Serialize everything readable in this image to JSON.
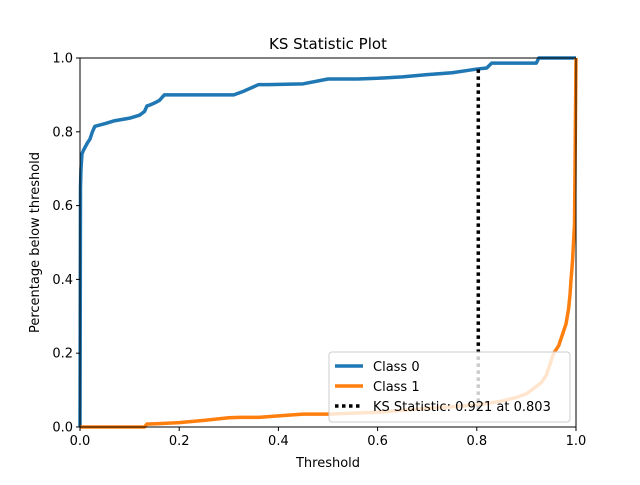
{
  "chart_data": {
    "type": "line",
    "title": "KS Statistic Plot",
    "xlabel": "Threshold",
    "ylabel": "Percentage below threshold",
    "xlim": [
      0,
      1
    ],
    "ylim": [
      0,
      1
    ],
    "xticks": [
      0,
      0.2,
      0.4,
      0.6,
      0.8,
      1
    ],
    "xtick_labels": [
      "0.0",
      "0.2",
      "0.4",
      "0.6",
      "0.8",
      "1.0"
    ],
    "yticks": [
      0,
      0.2,
      0.4,
      0.6,
      0.8,
      1
    ],
    "ytick_labels": [
      "0.0",
      "0.2",
      "0.4",
      "0.6",
      "0.8",
      "1.0"
    ],
    "grid": false,
    "legend_position": "lower-right",
    "series": [
      {
        "name": "Class 0",
        "label": "Class 0",
        "color": "#1f77b4",
        "style": "solid",
        "x": [
          0.0,
          0.001,
          0.002,
          0.004,
          0.007,
          0.015,
          0.02,
          0.025,
          0.03,
          0.05,
          0.07,
          0.1,
          0.12,
          0.13,
          0.135,
          0.14,
          0.15,
          0.16,
          0.17,
          0.2,
          0.25,
          0.31,
          0.33,
          0.36,
          0.38,
          0.45,
          0.5,
          0.56,
          0.6,
          0.65,
          0.7,
          0.75,
          0.78,
          0.8,
          0.82,
          0.83,
          0.85,
          0.9,
          0.92,
          0.925,
          0.95,
          1.0
        ],
        "y": [
          0.0,
          0.65,
          0.7,
          0.74,
          0.75,
          0.77,
          0.78,
          0.8,
          0.815,
          0.822,
          0.83,
          0.837,
          0.845,
          0.855,
          0.87,
          0.872,
          0.878,
          0.885,
          0.9,
          0.9,
          0.9,
          0.9,
          0.91,
          0.928,
          0.928,
          0.93,
          0.943,
          0.943,
          0.945,
          0.949,
          0.955,
          0.96,
          0.966,
          0.97,
          0.973,
          0.986,
          0.986,
          0.986,
          0.986,
          1.0,
          1.0,
          1.0
        ]
      },
      {
        "name": "Class 1",
        "label": "Class 1",
        "color": "#ff7f0e",
        "style": "solid",
        "x": [
          0.0,
          0.13,
          0.135,
          0.14,
          0.16,
          0.2,
          0.25,
          0.3,
          0.32,
          0.36,
          0.4,
          0.45,
          0.5,
          0.6,
          0.65,
          0.7,
          0.75,
          0.8,
          0.85,
          0.88,
          0.9,
          0.91,
          0.93,
          0.94,
          0.955,
          0.965,
          0.975,
          0.98,
          0.985,
          0.988,
          0.99,
          0.993,
          0.995,
          0.997,
          1.0
        ],
        "y": [
          0.0,
          0.0,
          0.008,
          0.008,
          0.009,
          0.012,
          0.018,
          0.025,
          0.026,
          0.026,
          0.03,
          0.035,
          0.035,
          0.04,
          0.045,
          0.05,
          0.055,
          0.06,
          0.07,
          0.08,
          0.09,
          0.1,
          0.12,
          0.14,
          0.2,
          0.22,
          0.26,
          0.28,
          0.32,
          0.36,
          0.4,
          0.45,
          0.5,
          0.55,
          1.0
        ]
      }
    ],
    "ks_line": {
      "label": "KS Statistic: 0.921 at 0.803",
      "color": "#000000",
      "style": "dotted",
      "x": 0.803,
      "y_start": 0.049,
      "y_end": 0.97,
      "statistic": 0.921
    }
  }
}
